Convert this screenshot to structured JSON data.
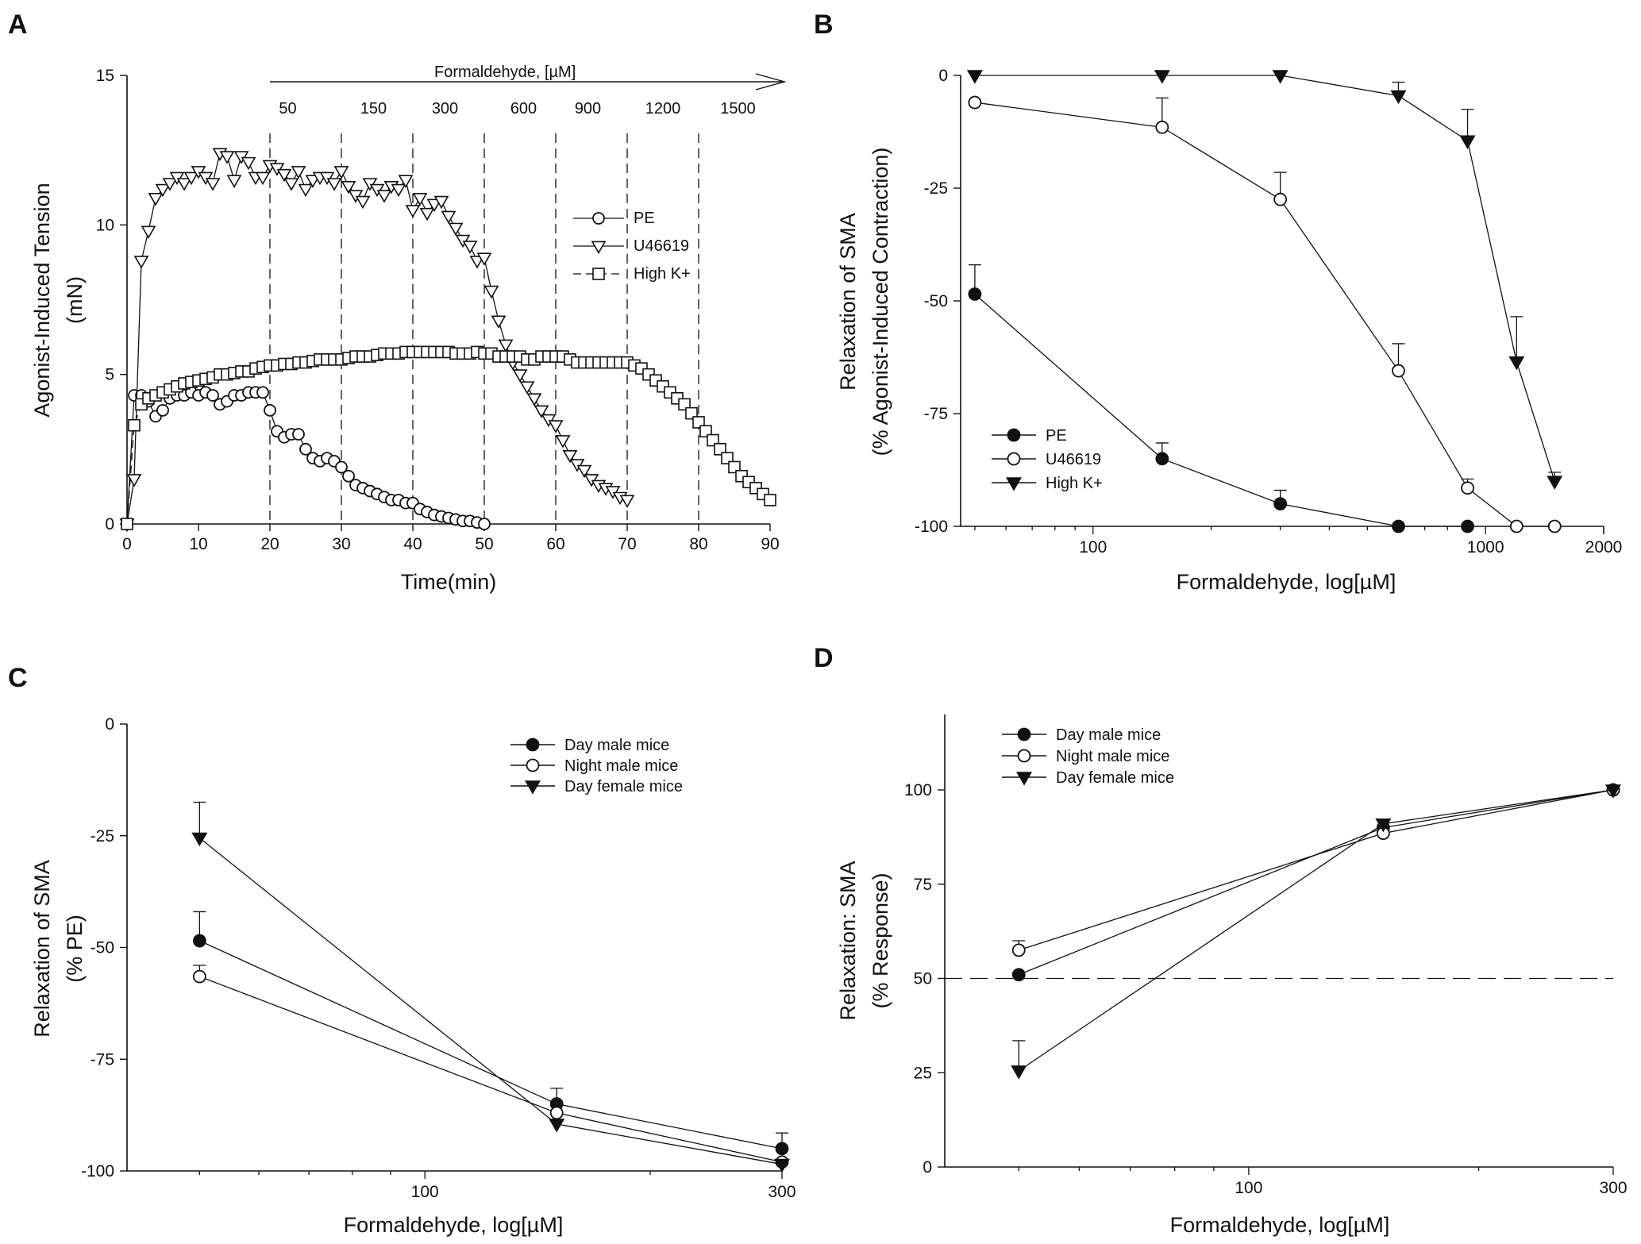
{
  "figure": {
    "panel_letters": [
      "A",
      "B",
      "C",
      "D"
    ]
  },
  "chart_data": [
    {
      "panel": "A",
      "type": "line",
      "xlabel": "Time(min)",
      "ylabel_lines": [
        "Agonist-Induced Tension",
        "(mN)"
      ],
      "xlim": [
        0,
        90
      ],
      "ylim": [
        0,
        15
      ],
      "xticks": [
        0,
        10,
        20,
        30,
        40,
        50,
        60,
        70,
        80,
        90
      ],
      "yticks": [
        0,
        5,
        10,
        15
      ],
      "annotation": {
        "title": "Formaldehyde, [µM]",
        "concentrations": [
          "50",
          "150",
          "300",
          "600",
          "900",
          "1200",
          "1500"
        ],
        "dashed_times": [
          20,
          30,
          40,
          50,
          60,
          70,
          80
        ]
      },
      "legend": [
        "PE",
        "U46619",
        "High K+"
      ],
      "series": [
        {
          "name": "PE",
          "marker": "circle-open",
          "x": [
            0,
            1,
            2,
            3,
            4,
            5,
            6,
            7,
            8,
            9,
            10,
            11,
            12,
            13,
            14,
            15,
            16,
            17,
            18,
            19,
            20,
            21,
            22,
            23,
            24,
            25,
            26,
            27,
            28,
            29,
            30,
            31,
            32,
            33,
            34,
            35,
            36,
            37,
            38,
            39,
            40,
            41,
            42,
            43,
            44,
            45,
            46,
            47,
            48,
            49,
            50
          ],
          "y": [
            0,
            4.3,
            4.3,
            4.1,
            3.6,
            3.8,
            4.2,
            4.3,
            4.3,
            4.4,
            4.3,
            4.4,
            4.3,
            4.0,
            4.1,
            4.3,
            4.3,
            4.4,
            4.4,
            4.4,
            3.8,
            3.1,
            2.9,
            3.0,
            3.0,
            2.5,
            2.2,
            2.1,
            2.2,
            2.1,
            1.9,
            1.6,
            1.3,
            1.2,
            1.1,
            1.0,
            0.9,
            0.8,
            0.8,
            0.7,
            0.7,
            0.5,
            0.4,
            0.3,
            0.25,
            0.2,
            0.15,
            0.1,
            0.1,
            0.05,
            0.0
          ]
        },
        {
          "name": "U46619",
          "marker": "triangle-down-open",
          "x": [
            0,
            1,
            2,
            3,
            4,
            5,
            6,
            7,
            8,
            9,
            10,
            11,
            12,
            13,
            14,
            15,
            16,
            17,
            18,
            19,
            20,
            21,
            22,
            23,
            24,
            25,
            26,
            27,
            28,
            29,
            30,
            31,
            32,
            33,
            34,
            35,
            36,
            37,
            38,
            39,
            40,
            41,
            42,
            43,
            44,
            45,
            46,
            47,
            48,
            49,
            50,
            51,
            52,
            53,
            54,
            55,
            56,
            57,
            58,
            59,
            60,
            61,
            62,
            63,
            64,
            65,
            66,
            67,
            68,
            69,
            70
          ],
          "y": [
            0,
            1.5,
            8.8,
            9.8,
            10.9,
            11.2,
            11.4,
            11.6,
            11.4,
            11.6,
            11.8,
            11.6,
            11.4,
            12.4,
            12.3,
            11.5,
            12.3,
            12.1,
            11.6,
            11.6,
            12.0,
            11.9,
            11.7,
            11.4,
            11.8,
            11.2,
            11.5,
            11.6,
            11.6,
            11.4,
            11.8,
            11.3,
            11.0,
            10.8,
            11.4,
            11.2,
            11.0,
            11.3,
            11.2,
            11.5,
            10.5,
            10.9,
            10.4,
            10.7,
            10.8,
            10.3,
            9.9,
            9.5,
            9.3,
            8.8,
            8.9,
            7.8,
            6.8,
            6.0,
            5.4,
            5.0,
            4.6,
            4.2,
            3.8,
            3.5,
            3.3,
            2.8,
            2.3,
            2.0,
            1.8,
            1.5,
            1.3,
            1.2,
            1.1,
            0.9,
            0.8
          ]
        },
        {
          "name": "High K+",
          "marker": "square-open",
          "x": [
            0,
            1,
            2,
            3,
            4,
            5,
            6,
            7,
            8,
            9,
            10,
            11,
            12,
            13,
            14,
            15,
            16,
            17,
            18,
            19,
            20,
            21,
            22,
            23,
            24,
            25,
            26,
            27,
            28,
            29,
            30,
            31,
            32,
            33,
            34,
            35,
            36,
            37,
            38,
            39,
            40,
            41,
            42,
            43,
            44,
            45,
            46,
            47,
            48,
            49,
            50,
            51,
            52,
            53,
            54,
            55,
            56,
            57,
            58,
            59,
            60,
            61,
            62,
            63,
            64,
            65,
            66,
            67,
            68,
            69,
            70,
            71,
            72,
            73,
            74,
            75,
            76,
            77,
            78,
            79,
            80,
            81,
            82,
            83,
            84,
            85,
            86,
            87,
            88,
            89,
            90
          ],
          "y": [
            0,
            3.3,
            4.0,
            4.2,
            4.3,
            4.4,
            4.5,
            4.6,
            4.7,
            4.75,
            4.8,
            4.85,
            4.9,
            5.0,
            5.0,
            5.05,
            5.1,
            5.1,
            5.2,
            5.25,
            5.3,
            5.3,
            5.35,
            5.35,
            5.4,
            5.4,
            5.45,
            5.5,
            5.5,
            5.5,
            5.5,
            5.55,
            5.6,
            5.6,
            5.6,
            5.65,
            5.7,
            5.7,
            5.7,
            5.75,
            5.75,
            5.75,
            5.75,
            5.75,
            5.75,
            5.75,
            5.7,
            5.7,
            5.7,
            5.75,
            5.7,
            5.7,
            5.6,
            5.6,
            5.6,
            5.6,
            5.5,
            5.5,
            5.6,
            5.6,
            5.6,
            5.6,
            5.5,
            5.4,
            5.4,
            5.4,
            5.4,
            5.4,
            5.4,
            5.4,
            5.4,
            5.3,
            5.2,
            5.0,
            4.8,
            4.6,
            4.4,
            4.2,
            4.0,
            3.7,
            3.4,
            3.1,
            2.8,
            2.5,
            2.2,
            1.9,
            1.6,
            1.4,
            1.2,
            1.0,
            0.8
          ]
        }
      ]
    },
    {
      "panel": "B",
      "type": "line",
      "xscale": "log",
      "xlabel": "Formaldehyde, log[µM]",
      "ylabel_lines": [
        "Relaxation of SMA",
        "(% Agonist-Induced Contraction)"
      ],
      "xlim": [
        40,
        2000
      ],
      "ylim": [
        -100,
        0
      ],
      "xticks": [
        100,
        1000,
        2000
      ],
      "xtick_labels": [
        "100",
        "1000",
        "2000"
      ],
      "yticks": [
        0,
        -25,
        -50,
        -75,
        -100
      ],
      "legend": [
        "PE",
        "U46619",
        "High K+"
      ],
      "series": [
        {
          "name": "PE",
          "marker": "circle-filled",
          "x": [
            50,
            150,
            300,
            600,
            900
          ],
          "y": [
            -48.5,
            -85,
            -95,
            -100,
            -100
          ],
          "err": [
            6.5,
            3.5,
            3,
            0,
            0
          ]
        },
        {
          "name": "U46619",
          "marker": "circle-open",
          "x": [
            50,
            150,
            300,
            600,
            900,
            1200,
            1500
          ],
          "y": [
            -6,
            -11.5,
            -27.5,
            -65.5,
            -91.5,
            -100,
            -100
          ],
          "err": [
            0,
            6.5,
            6,
            6,
            2,
            0,
            0
          ]
        },
        {
          "name": "High K+",
          "marker": "triangle-down-filled",
          "x": [
            50,
            150,
            300,
            600,
            900,
            1200,
            1500
          ],
          "y": [
            0,
            0,
            0,
            -4.5,
            -14.5,
            -63.5,
            -90
          ],
          "err": [
            0,
            0,
            0,
            3,
            7,
            10,
            2
          ]
        }
      ]
    },
    {
      "panel": "C",
      "type": "line",
      "xscale": "log",
      "xlabel": "Formaldehyde, log[µM]",
      "ylabel_lines": [
        "Relaxation of SMA",
        "(% PE)"
      ],
      "xlim": [
        40,
        300
      ],
      "ylim": [
        -100,
        0
      ],
      "xticks": [
        100,
        300
      ],
      "xtick_labels": [
        "100",
        "300"
      ],
      "yticks": [
        0,
        -25,
        -50,
        -75,
        -100
      ],
      "legend": [
        "Day male mice",
        "Night male mice",
        "Day female mice"
      ],
      "series": [
        {
          "name": "Day male mice",
          "marker": "circle-filled",
          "x": [
            50,
            150,
            300
          ],
          "y": [
            -48.5,
            -85,
            -95
          ],
          "err": [
            6.5,
            3.5,
            3.5
          ]
        },
        {
          "name": "Night male mice",
          "marker": "circle-open",
          "x": [
            50,
            150,
            300
          ],
          "y": [
            -56.5,
            -87,
            -98
          ],
          "err": [
            2.5,
            0,
            0
          ]
        },
        {
          "name": "Day female mice",
          "marker": "triangle-down-filled",
          "x": [
            50,
            150,
            300
          ],
          "y": [
            -25.5,
            -89.5,
            -98.5
          ],
          "err": [
            8,
            0,
            0
          ]
        }
      ]
    },
    {
      "panel": "D",
      "type": "line",
      "xscale": "log",
      "xlabel": "Formaldehyde, log[µM]",
      "ylabel_lines": [
        "Relaxation: SMA",
        "(% Response)"
      ],
      "xlim": [
        40,
        300
      ],
      "ylim": [
        0,
        120
      ],
      "xticks": [
        100,
        300
      ],
      "xtick_labels": [
        "100",
        "300"
      ],
      "yticks": [
        0,
        25,
        50,
        75,
        100
      ],
      "reference_line_y": 50,
      "legend": [
        "Day male mice",
        "Night male mice",
        "Day female mice"
      ],
      "series": [
        {
          "name": "Day male mice",
          "marker": "circle-filled",
          "x": [
            50,
            150,
            300
          ],
          "y": [
            51,
            90,
            100
          ],
          "err": [
            0,
            0,
            0
          ]
        },
        {
          "name": "Night male mice",
          "marker": "circle-open",
          "x": [
            50,
            150,
            300
          ],
          "y": [
            57.5,
            88.5,
            100
          ],
          "err": [
            2.5,
            0,
            0
          ]
        },
        {
          "name": "Day female mice",
          "marker": "triangle-down-filled",
          "x": [
            50,
            150,
            300
          ],
          "y": [
            25.5,
            91,
            100
          ],
          "err": [
            8,
            0,
            0
          ]
        }
      ]
    }
  ]
}
